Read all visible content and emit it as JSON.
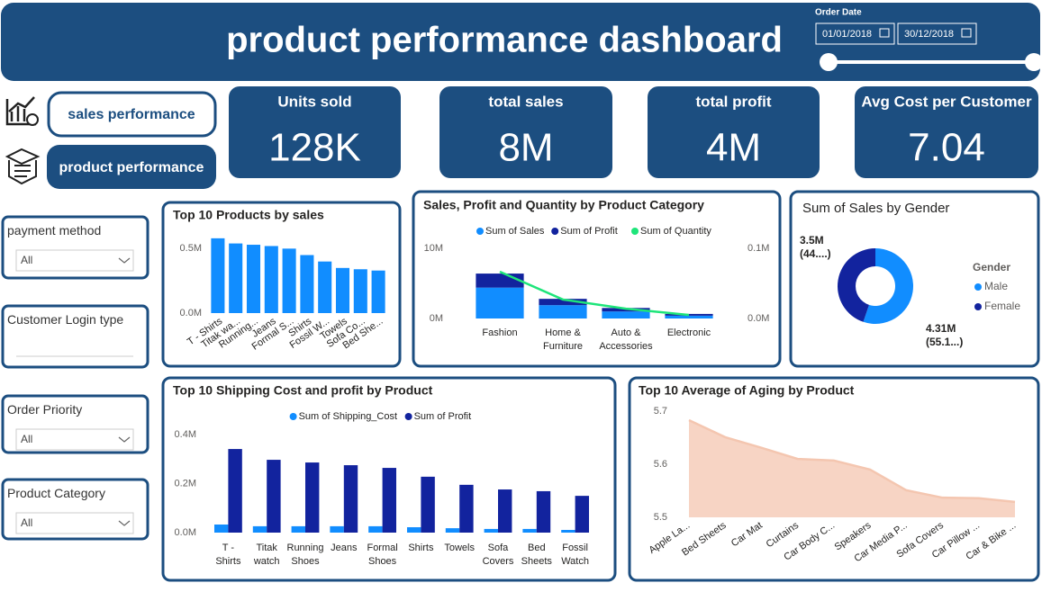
{
  "header": {
    "title": "product performance dashboard",
    "date_label": "Order Date",
    "start_date": "01/01/2018",
    "end_date": "30/12/2018"
  },
  "nav": [
    "sales performance",
    "product performance"
  ],
  "kpis": [
    {
      "label": "Units sold",
      "value": "128K"
    },
    {
      "label": "total sales",
      "value": "8M"
    },
    {
      "label": "total profit",
      "value": "4M"
    },
    {
      "label": "Avg Cost per Customer",
      "value": "7.04"
    }
  ],
  "filters": [
    {
      "label": "payment method",
      "value": "All"
    },
    {
      "label": "Customer Login type"
    },
    {
      "label": "Order Priority",
      "value": "All"
    },
    {
      "label": "Product Category",
      "value": "All"
    }
  ],
  "chart_data": [
    {
      "type": "bar",
      "title": "Top 10 Products by sales",
      "categories": [
        "T - Shirts",
        "Titak wa...",
        "Running...",
        "Jeans",
        "Formal S...",
        "Shirts",
        "Fossil W...",
        "Towels",
        "Sofa Co...",
        "Bed She..."
      ],
      "values": [
        580000,
        540000,
        530000,
        520000,
        500000,
        450000,
        400000,
        350000,
        340000,
        330000
      ],
      "color": "#118dff",
      "ylim": [
        0,
        600000
      ],
      "yticks": [
        {
          "value": 0,
          "label": "0.0M"
        },
        {
          "value": 500000,
          "label": "0.5M"
        }
      ]
    },
    {
      "type": "combo",
      "title": "Sales, Profit and Quantity by Product Category",
      "categories": [
        "Fashion",
        "Home & Furniture",
        "Auto & Accessories",
        "Electronic"
      ],
      "series": [
        {
          "name": "Sum of Sales",
          "color": "#118dff",
          "values": [
            4400000,
            1900000,
            1000000,
            400000
          ]
        },
        {
          "name": "Sum of Profit",
          "color": "#12239e",
          "values": [
            2000000,
            900000,
            500000,
            250000
          ]
        },
        {
          "name": "Sum of Quantity",
          "color": "#1ee57a",
          "axis": "y2",
          "values": [
            66700,
            27000,
            14000,
            5000
          ]
        }
      ],
      "stacked": true,
      "ylim": [
        0,
        10000000
      ],
      "yticks": [
        {
          "value": 0,
          "label": "0M"
        },
        {
          "value": 10000000,
          "label": "10M"
        }
      ],
      "y2lim": [
        0,
        100000
      ],
      "y2ticks": [
        {
          "value": 0,
          "label": "0.0M"
        },
        {
          "value": 100000,
          "label": "0.1M"
        }
      ]
    },
    {
      "type": "donut",
      "title": "Sum of Sales by Gender",
      "legend_title": "Gender",
      "categories": [
        "Male",
        "Female"
      ],
      "values": [
        4310000,
        3500000
      ],
      "value_labels": [
        "4.31M (55.1...)",
        "3.5M (44....)"
      ],
      "colors": [
        "#118dff",
        "#12239e"
      ]
    },
    {
      "type": "grouped_bar",
      "title": "Top 10 Shipping Cost and profit by Product",
      "categories": [
        "T - Shirts",
        "Titak watch",
        "Running Shoes",
        "Jeans",
        "Formal Shoes",
        "Shirts",
        "Towels",
        "Sofa Covers",
        "Bed Sheets",
        "Fossil Watch"
      ],
      "series": [
        {
          "name": "Sum of Shipping_Cost",
          "color": "#118dff",
          "values": [
            33000,
            26000,
            26000,
            26000,
            26000,
            22000,
            18000,
            15000,
            15000,
            11000
          ]
        },
        {
          "name": "Sum of Profit",
          "color": "#12239e",
          "values": [
            341000,
            297000,
            286000,
            275000,
            264000,
            228000,
            195000,
            176000,
            169000,
            150000
          ]
        }
      ],
      "ylim": [
        0,
        400000
      ],
      "yticks": [
        {
          "value": 0,
          "label": "0.0M"
        },
        {
          "value": 200000,
          "label": "0.2M"
        },
        {
          "value": 400000,
          "label": "0.4M"
        }
      ]
    },
    {
      "type": "area",
      "title": "Top 10 Average of Aging by Product",
      "categories": [
        "Apple La...",
        "Bed Sheets",
        "Car Mat",
        "Curtains",
        "Car Body C...",
        "Speakers",
        "Car Media P...",
        "Sofa Covers",
        "Car Pillow ...",
        "Car & Bike ..."
      ],
      "values": [
        5.683,
        5.651,
        5.631,
        5.61,
        5.607,
        5.59,
        5.551,
        5.537,
        5.536,
        5.529
      ],
      "color": "#f4c6b0",
      "ylim": [
        5.5,
        5.7
      ],
      "yticks": [
        5.5,
        5.6,
        5.7
      ]
    }
  ]
}
